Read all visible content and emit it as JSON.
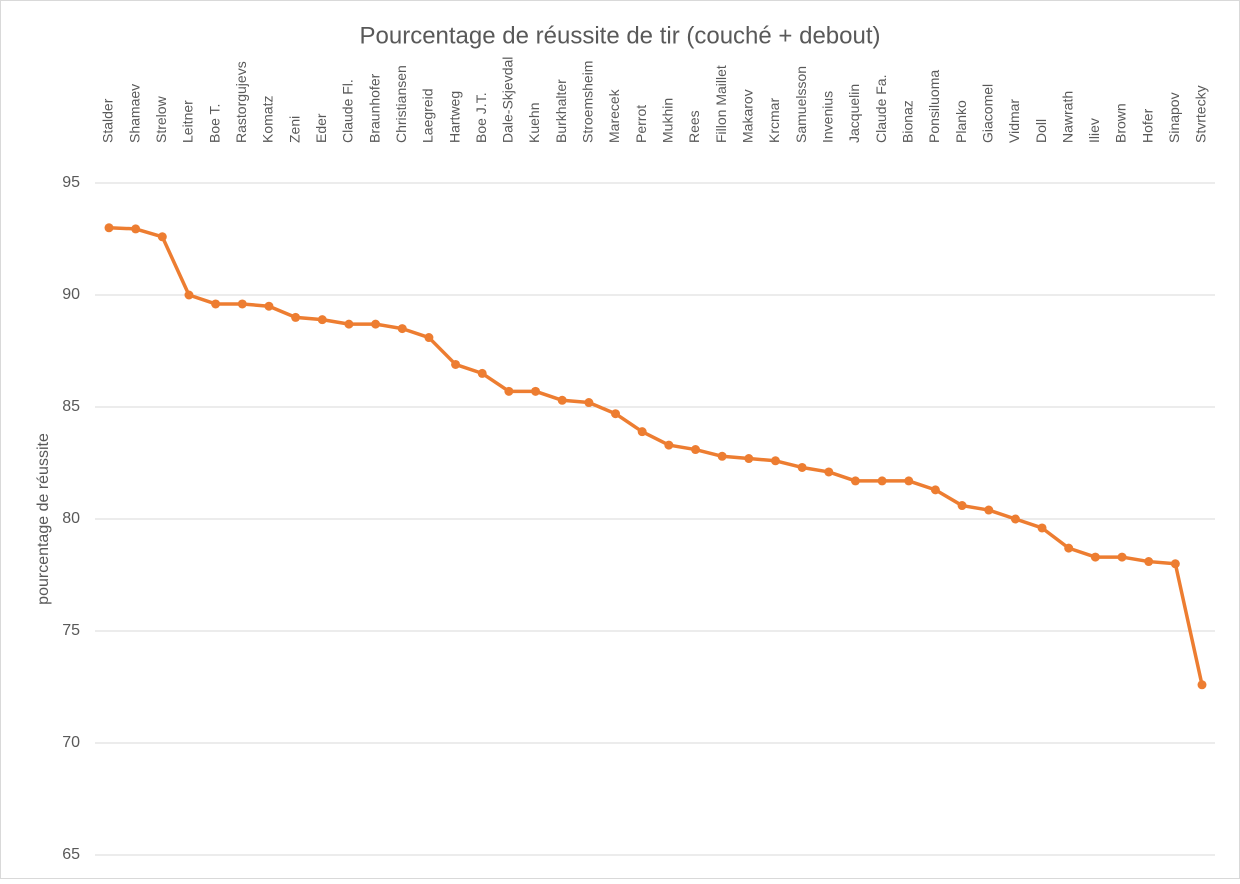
{
  "chart_data": {
    "type": "line",
    "title": "Pourcentage de réussite de tir (couché + debout)",
    "y_label": "pourcentage de réussite",
    "categories": [
      "Stalder",
      "Shamaev",
      "Strelow",
      "Leitner",
      "Boe T.",
      "Rastorgujevs",
      "Komatz",
      "Zeni",
      "Eder",
      "Claude Fl.",
      "Braunhofer",
      "Christiansen",
      "Laegreid",
      "Hartweg",
      "Boe J.T.",
      "Dale-Skjevdal",
      "Kuehn",
      "Burkhalter",
      "Stroemsheim",
      "Marecek",
      "Perrot",
      "Mukhin",
      "Rees",
      "Fillon Maillet",
      "Makarov",
      "Krcmar",
      "Samuelsson",
      "Invenius",
      "Jacquelin",
      "Claude Fa.",
      "Bionaz",
      "Ponsiluoma",
      "Planko",
      "Giacomel",
      "Vidmar",
      "Doll",
      "Nawrath",
      "Iliev",
      "Brown",
      "Hofer",
      "Sinapov",
      "Stvrtecky"
    ],
    "values": [
      93.0,
      92.95,
      92.6,
      90.0,
      89.6,
      89.6,
      89.5,
      89.0,
      88.9,
      88.7,
      88.7,
      88.5,
      88.1,
      86.9,
      86.5,
      85.7,
      85.7,
      85.3,
      85.2,
      84.7,
      83.9,
      83.3,
      83.1,
      82.8,
      82.7,
      82.6,
      82.3,
      82.1,
      81.7,
      81.7,
      81.7,
      81.3,
      80.6,
      80.4,
      80.0,
      79.6,
      78.7,
      78.3,
      78.3,
      78.1,
      78.0,
      72.6
    ],
    "color": "#ED7D31",
    "ylim": [
      65,
      95
    ],
    "yticks": [
      65,
      70,
      75,
      80,
      85,
      90,
      95
    ],
    "grid": true
  }
}
